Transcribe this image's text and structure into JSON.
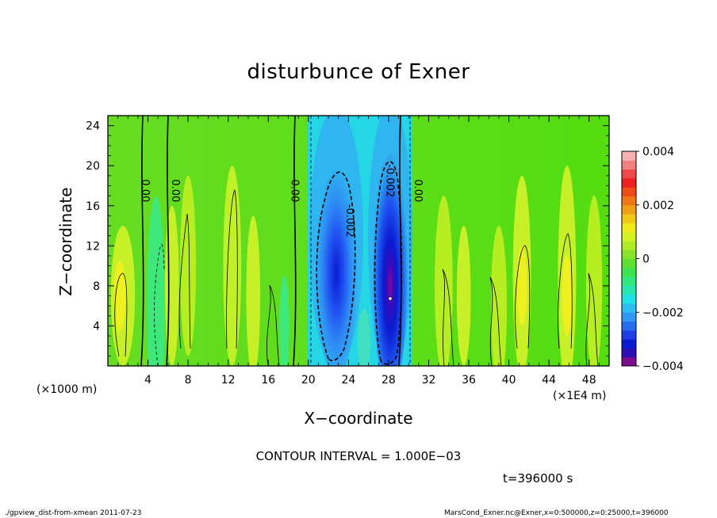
{
  "chart_data": {
    "type": "heatmap",
    "title": "disturbunce of Exner",
    "xlabel": "X−coordinate",
    "ylabel": "Z−coordinate",
    "x_scale_note": "(×1000 m)",
    "x_unit_note": "(×1E4 m)",
    "xlim": [
      0,
      50
    ],
    "ylim": [
      0,
      25
    ],
    "xticks": [
      4,
      8,
      12,
      16,
      20,
      24,
      28,
      32,
      36,
      40,
      44,
      48
    ],
    "yticks": [
      4,
      8,
      12,
      16,
      20,
      24
    ],
    "colorbar": {
      "range": [
        -0.004,
        0.004
      ],
      "tick_labels": [
        "0.004",
        "0.002",
        "0",
        "−0.002",
        "−0.004"
      ],
      "tick_values": [
        0.004,
        0.002,
        0,
        -0.002,
        -0.004
      ]
    },
    "contour_labels": [
      {
        "text": "0.00",
        "x": 3.4,
        "z": 17.5
      },
      {
        "text": "0.00",
        "x": 6.4,
        "z": 17.5
      },
      {
        "text": "0.00",
        "x": 18.3,
        "z": 17.5
      },
      {
        "text": "-0.002",
        "x": 23.8,
        "z": 14.5
      },
      {
        "text": "-0.002",
        "x": 27.8,
        "z": 18.5
      },
      {
        "text": "0.00",
        "x": 30.6,
        "z": 17.5
      }
    ],
    "contour_interval_text": "CONTOUR INTERVAL = 1.000E−03",
    "time_text": "t=396000 s"
  },
  "footer": {
    "left": "./gpview_dist-from-xmean   2011-07-23",
    "right": "MarsCond_Exner.nc@Exner,x=0:500000,z=0:25000,t=396000"
  }
}
